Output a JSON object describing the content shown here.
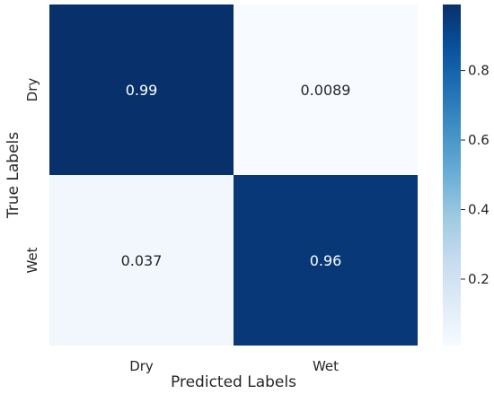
{
  "chart_data": {
    "type": "heatmap",
    "title": "",
    "xlabel": "Predicted Labels",
    "ylabel": "True Labels",
    "x_categories": [
      "Dry",
      "Wet"
    ],
    "y_categories": [
      "Dry",
      "Wet"
    ],
    "values": [
      [
        0.99,
        0.0089
      ],
      [
        0.037,
        0.96
      ]
    ],
    "cell_labels": [
      [
        "0.99",
        "0.0089"
      ],
      [
        "0.037",
        "0.96"
      ]
    ],
    "colormap": "Blues",
    "colorbar": {
      "range": [
        0.0089,
        0.99
      ],
      "ticks": [
        0.2,
        0.4,
        0.6,
        0.8
      ],
      "tick_labels": [
        "0.2",
        "0.4",
        "0.6",
        "0.8"
      ]
    },
    "grid": false,
    "legend": "colorbar-right"
  }
}
